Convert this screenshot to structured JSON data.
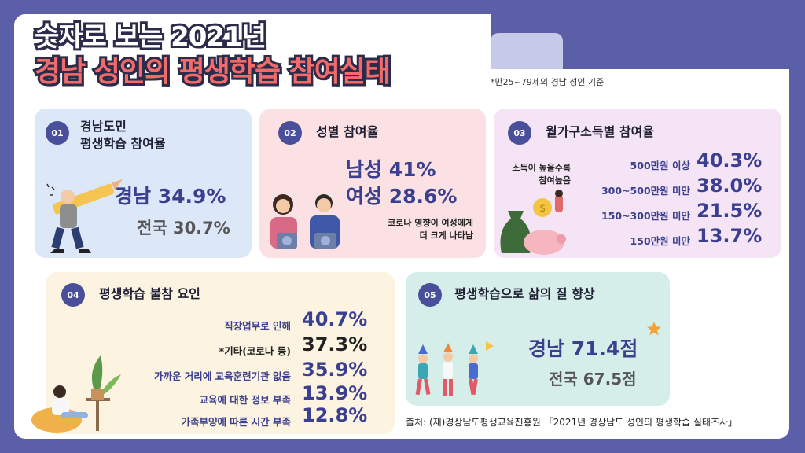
{
  "title": {
    "line1": "숫자로 보는 2021년",
    "line2": "경남 성인의 평생학습 참여실태"
  },
  "note": "*만25~79세의 경남 성인 기준",
  "box01": {
    "badge": "01",
    "heading_line1": "경남도민",
    "heading_line2": "평생학습 참여율",
    "region_value": "경남 34.9%",
    "national_value": "전국 30.7%"
  },
  "box02": {
    "badge": "02",
    "heading": "성별 참여율",
    "male": "남성 41%",
    "female": "여성 28.6%",
    "comment_line1": "코로나 영향이 여성에게",
    "comment_line2": "더 크게 나타남"
  },
  "box03": {
    "badge": "03",
    "heading": "월가구소득별 참여율",
    "side_note_line1": "소득이 높을수록",
    "side_note_line2": "참여높음",
    "rows": [
      {
        "label": "500만원 이상",
        "value": "40.3%"
      },
      {
        "label": "300~500만원 미만",
        "value": "38.0%"
      },
      {
        "label": "150~300만원 미만",
        "value": "21.5%"
      },
      {
        "label": "150만원 미만",
        "value": "13.7%"
      }
    ]
  },
  "box04": {
    "badge": "04",
    "heading": "평생학습 불참 요인",
    "rows": [
      {
        "label": "직장업무로 인해",
        "value": "40.7%"
      },
      {
        "label": "*기타(코로나 등)",
        "value": "37.3%"
      },
      {
        "label": "가까운 거리에 교육훈련기관 없음",
        "value": "35.9%"
      },
      {
        "label": "교육에 대한 정보 부족",
        "value": "13.9%"
      },
      {
        "label": "가족부양에 따른 시간 부족",
        "value": "12.8%"
      }
    ]
  },
  "box05": {
    "badge": "05",
    "heading": "평생학습으로 삶의 질 향상",
    "region_value": "경남 71.4점",
    "national_value": "전국 67.5점"
  },
  "source": "출처: (재)경상남도평생교육진흥원 「2021년 경상남도 성인의 평생학습 실태조사」",
  "colors": {
    "background": "#5b5fa8",
    "accent": "#3b3f8f",
    "title_red": "#f26b6b"
  }
}
